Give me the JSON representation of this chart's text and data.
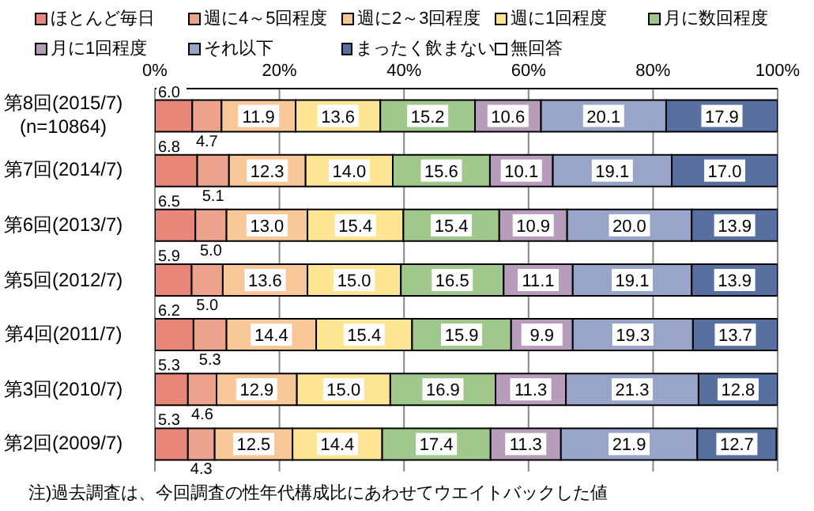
{
  "chart_data": {
    "type": "bar",
    "orientation": "horizontal",
    "stacked": true,
    "grid": "x",
    "legend": "top",
    "categories": [
      "第8回(2015/7)(n=10864)",
      "第7回(2014/7)",
      "第6回(2013/7)",
      "第5回(2012/7)",
      "第4回(2011/7)",
      "第3回(2010/7)",
      "第2回(2009/7)"
    ],
    "xlim": [
      0,
      100
    ],
    "xticks": [
      {
        "value": 0,
        "label": "0%"
      },
      {
        "value": 20,
        "label": "20%"
      },
      {
        "value": 40,
        "label": "40%"
      },
      {
        "value": 60,
        "label": "60%"
      },
      {
        "value": 80,
        "label": "80%"
      },
      {
        "value": 100,
        "label": "100%"
      }
    ],
    "series": [
      {
        "name": "ほとんど毎日",
        "color": "#e8867a",
        "values": [
          6.0,
          6.8,
          6.5,
          5.9,
          6.2,
          5.3,
          5.3
        ],
        "value_labels": [
          "6.0",
          "6.8",
          "6.5",
          "5.9",
          "6.2",
          "5.3",
          "5.3"
        ]
      },
      {
        "name": "週に4～5回程度",
        "color": "#eca28c",
        "values": [
          4.7,
          5.1,
          5.0,
          5.0,
          5.3,
          4.6,
          4.3
        ],
        "value_labels": [
          "4.7",
          "5.1",
          "5.0",
          "5.0",
          "5.3",
          "4.6",
          "4.3"
        ]
      },
      {
        "name": "週に2～3回程度",
        "color": "#f8c898",
        "values": [
          11.9,
          12.3,
          13.0,
          13.6,
          14.4,
          12.9,
          12.5
        ],
        "value_labels": [
          "11.9",
          "12.3",
          "13.0",
          "13.6",
          "14.4",
          "12.9",
          "12.5"
        ]
      },
      {
        "name": "週に1回程度",
        "color": "#fde594",
        "values": [
          13.6,
          14.0,
          15.4,
          15.0,
          15.4,
          15.0,
          14.4
        ],
        "value_labels": [
          "13.6",
          "14.0",
          "15.4",
          "15.0",
          "15.4",
          "15.0",
          "14.4"
        ]
      },
      {
        "name": "月に数回程度",
        "color": "#a0c88c",
        "values": [
          15.2,
          15.6,
          15.4,
          16.5,
          15.9,
          16.9,
          17.4
        ],
        "value_labels": [
          "15.2",
          "15.6",
          "15.4",
          "16.5",
          "15.9",
          "16.9",
          "17.4"
        ]
      },
      {
        "name": "月に1回程度",
        "color": "#b89cbc",
        "values": [
          10.6,
          10.1,
          10.9,
          11.1,
          9.9,
          11.3,
          11.3
        ],
        "value_labels": [
          "10.6",
          "10.1",
          "10.9",
          "11.1",
          "9.9",
          "11.3",
          "11.3"
        ]
      },
      {
        "name": "それ以下",
        "color": "#98a4c8",
        "values": [
          20.1,
          19.1,
          20.0,
          19.1,
          19.3,
          21.3,
          21.9
        ],
        "value_labels": [
          "20.1",
          "19.1",
          "20.0",
          "19.1",
          "19.3",
          "21.3",
          "21.9"
        ]
      },
      {
        "name": "まったく飲まない",
        "color": "#5870a0",
        "values": [
          17.9,
          17.0,
          13.9,
          13.9,
          13.7,
          12.8,
          12.7
        ],
        "value_labels": [
          "17.9",
          "17.0",
          "13.9",
          "13.9",
          "13.7",
          "12.8",
          "12.7"
        ]
      },
      {
        "name": "無回答",
        "color": "#ffffff",
        "values": [
          null,
          null,
          null,
          null,
          null,
          null,
          null
        ]
      }
    ],
    "annotations": [
      "注)過去調査は、今回調査の性年代構成比にあわせてウエイトバックした値"
    ]
  }
}
